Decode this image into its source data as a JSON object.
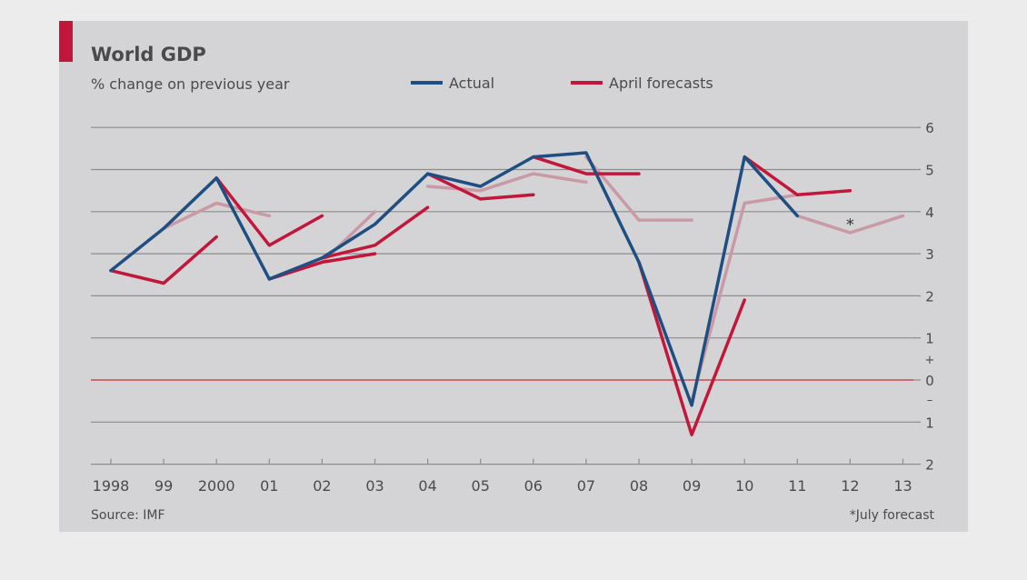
{
  "chart_data": {
    "type": "line",
    "title": "World GDP",
    "subtitle": "% change on previous year",
    "source": "Source: IMF",
    "footnote": "*July forecast",
    "annotation": "*",
    "xlabel": "",
    "ylabel": "",
    "x_tick_labels": [
      "1998",
      "99",
      "2000",
      "01",
      "02",
      "03",
      "04",
      "05",
      "06",
      "07",
      "08",
      "09",
      "10",
      "11",
      "12",
      "13"
    ],
    "y_ticks": [
      {
        "value": 6,
        "label": "6"
      },
      {
        "value": 5,
        "label": "5"
      },
      {
        "value": 4,
        "label": "4"
      },
      {
        "value": 3,
        "label": "3"
      },
      {
        "value": 2,
        "label": "2"
      },
      {
        "value": 1,
        "label": "1"
      },
      {
        "value": 0,
        "label": "0"
      },
      {
        "value": -1,
        "label": "1"
      },
      {
        "value": -2,
        "label": "2"
      }
    ],
    "y_sign_markers": {
      "plus": "+",
      "minus": "–"
    },
    "ylim": [
      -2,
      6
    ],
    "grid": true,
    "y_axis_side": "right",
    "legend_position": "top",
    "legend": [
      {
        "name": "Actual",
        "color": "#1f4f82"
      },
      {
        "name": "April forecasts",
        "color": "#c2173a"
      }
    ],
    "series": [
      {
        "name": "Actual",
        "color": "#1f4f82",
        "x": [
          1998,
          1999,
          2000,
          2001,
          2002,
          2003,
          2004,
          2005,
          2006,
          2007,
          2008,
          2009,
          2010,
          2011
        ],
        "y": [
          2.6,
          3.6,
          4.8,
          2.4,
          2.9,
          3.7,
          4.9,
          4.6,
          5.3,
          5.4,
          2.8,
          -0.6,
          5.3,
          3.9
        ]
      },
      {
        "name": "April forecasts",
        "color": "#c2173a",
        "segments": [
          {
            "x": [
              1998,
              1999,
              2000
            ],
            "y": [
              2.6,
              2.3,
              3.4
            ]
          },
          {
            "x": [
              2000,
              2001,
              2002
            ],
            "y": [
              4.8,
              3.2,
              3.9
            ]
          },
          {
            "x": [
              2001,
              2002,
              2003
            ],
            "y": [
              2.4,
              2.8,
              3.0
            ]
          },
          {
            "x": [
              2002,
              2003,
              2004
            ],
            "y": [
              2.9,
              3.2,
              4.1
            ]
          },
          {
            "x": [
              2004,
              2005,
              2006
            ],
            "y": [
              4.9,
              4.3,
              4.4
            ]
          },
          {
            "x": [
              2006,
              2007,
              2008
            ],
            "y": [
              5.3,
              4.9,
              4.9
            ]
          },
          {
            "x": [
              2008,
              2009,
              2010
            ],
            "y": [
              2.8,
              -1.3,
              1.9
            ]
          },
          {
            "x": [
              2010,
              2011,
              2012
            ],
            "y": [
              5.3,
              4.4,
              4.5
            ]
          }
        ]
      }
    ],
    "forecast_paths": [
      {
        "x": [
          1999,
          2000,
          2001
        ],
        "y": [
          3.6,
          4.2,
          3.9
        ]
      },
      {
        "x": [
          2001,
          2002,
          2003
        ],
        "y": [
          2.4,
          2.8,
          4.0
        ]
      },
      {
        "x": [
          2004,
          2005,
          2006,
          2007
        ],
        "y": [
          4.6,
          4.5,
          4.9,
          4.7
        ]
      },
      {
        "x": [
          2007,
          2008,
          2009
        ],
        "y": [
          5.3,
          3.8,
          3.8
        ]
      },
      {
        "x": [
          2009,
          2010,
          2011
        ],
        "y": [
          -0.5,
          4.2,
          4.4
        ]
      },
      {
        "x": [
          2011,
          2012,
          2013
        ],
        "y": [
          3.9,
          3.5,
          3.9
        ]
      }
    ],
    "colors": {
      "panel_bg": "#d4d4d6",
      "accent": "#c2173a",
      "grid": "#8c8c8e",
      "zero_line": "#c94a4a",
      "text": "#4a4a4a",
      "forecast_faded": "#c99aa5"
    }
  }
}
